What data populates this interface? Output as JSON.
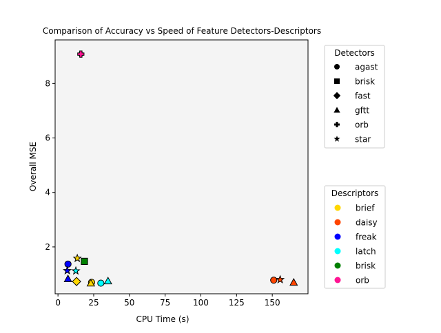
{
  "chart_data": {
    "type": "scatter",
    "title": "Comparison of Accuracy vs Speed of Feature Detectors-Descriptors",
    "xlabel": "CPU Time (s)",
    "ylabel": "Overall MSE",
    "xlim": [
      -2,
      175
    ],
    "ylim": [
      0.28,
      9.6
    ],
    "xticks": [
      0,
      25,
      50,
      75,
      100,
      125,
      150
    ],
    "yticks": [
      2,
      4,
      6,
      8
    ],
    "grid": false,
    "plot_background": "#f4f4f4",
    "detectors_legend": {
      "title": "Detectors",
      "placement": "upper right outside",
      "entries": [
        {
          "label": "agast",
          "marker": "circle"
        },
        {
          "label": "brisk",
          "marker": "square"
        },
        {
          "label": "fast",
          "marker": "diamond"
        },
        {
          "label": "gftt",
          "marker": "triangle"
        },
        {
          "label": "orb",
          "marker": "plus"
        },
        {
          "label": "star",
          "marker": "star"
        }
      ]
    },
    "descriptors_legend": {
      "title": "Descriptors",
      "placement": "lower right outside",
      "entries": [
        {
          "label": "brief",
          "color": "#FFD700"
        },
        {
          "label": "daisy",
          "color": "#FF4500"
        },
        {
          "label": "freak",
          "color": "#0000FF"
        },
        {
          "label": "latch",
          "color": "#00FFFF"
        },
        {
          "label": "brisk",
          "color": "#008000"
        },
        {
          "label": "orb",
          "color": "#FF1493"
        }
      ]
    },
    "points": [
      {
        "detector": "orb",
        "descriptor": "orb",
        "x": 16,
        "y": 9.08
      },
      {
        "detector": "brisk",
        "descriptor": "brisk",
        "x": 18.5,
        "y": 1.47
      },
      {
        "detector": "star",
        "descriptor": "brief",
        "x": 13.5,
        "y": 1.58
      },
      {
        "detector": "agast",
        "descriptor": "freak",
        "x": 7,
        "y": 1.37
      },
      {
        "detector": "star",
        "descriptor": "freak",
        "x": 6.5,
        "y": 1.13
      },
      {
        "detector": "star",
        "descriptor": "latch",
        "x": 12.5,
        "y": 1.12
      },
      {
        "detector": "gftt",
        "descriptor": "freak",
        "x": 7,
        "y": 0.83
      },
      {
        "detector": "fast",
        "descriptor": "brief",
        "x": 13,
        "y": 0.73
      },
      {
        "detector": "agast",
        "descriptor": "brief",
        "x": 23.5,
        "y": 0.7
      },
      {
        "detector": "gftt",
        "descriptor": "brief",
        "x": 23,
        "y": 0.67
      },
      {
        "detector": "agast",
        "descriptor": "latch",
        "x": 30,
        "y": 0.67
      },
      {
        "detector": "gftt",
        "descriptor": "latch",
        "x": 35,
        "y": 0.75
      },
      {
        "detector": "agast",
        "descriptor": "daisy",
        "x": 151,
        "y": 0.78
      },
      {
        "detector": "star",
        "descriptor": "daisy",
        "x": 155.5,
        "y": 0.8
      },
      {
        "detector": "gftt",
        "descriptor": "daisy",
        "x": 165,
        "y": 0.7
      }
    ]
  }
}
